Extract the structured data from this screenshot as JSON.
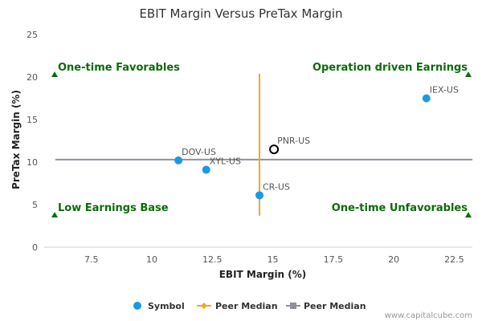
{
  "chart_data": {
    "type": "scatter",
    "title": "EBIT Margin Versus PreTax Margin",
    "xlabel": "EBIT Margin (%)",
    "ylabel": "PreTax Margin (%)",
    "xlim": [
      5.55,
      23.25
    ],
    "ylim": [
      0,
      25
    ],
    "xticks": [
      7.5,
      10,
      12.5,
      15,
      17.5,
      20,
      22.5
    ],
    "yticks": [
      0,
      5,
      10,
      15,
      20,
      25
    ],
    "grid": false,
    "points": [
      {
        "label": "DOV-US",
        "x": 11.1,
        "y": 10.2,
        "highlight": false
      },
      {
        "label": "XYL-US",
        "x": 12.25,
        "y": 9.1,
        "highlight": false
      },
      {
        "label": "CR-US",
        "x": 14.45,
        "y": 6.1,
        "highlight": false
      },
      {
        "label": "PNR-US",
        "x": 15.05,
        "y": 11.5,
        "highlight": true
      },
      {
        "label": "IEX-US",
        "x": 21.35,
        "y": 17.5,
        "highlight": false
      }
    ],
    "peer_median_x": 14.45,
    "peer_median_y": 10.3,
    "quadrants": {
      "top_left": "One-time Favorables",
      "top_right": "Operation driven Earnings",
      "bottom_left": "Low Earnings Base",
      "bottom_right": "One-time Unfavorables"
    },
    "legend": [
      "Symbol",
      "Peer Median",
      "Peer Median"
    ],
    "legend_position": "bottom",
    "colors": {
      "symbol": "#1a9ae6",
      "peer_median_x": "#f5a623",
      "peer_median_y": "#8f8f9e",
      "quadrant_text": "#0b6b0b"
    }
  },
  "footer": {
    "credit": "www.capitalcube.com"
  }
}
